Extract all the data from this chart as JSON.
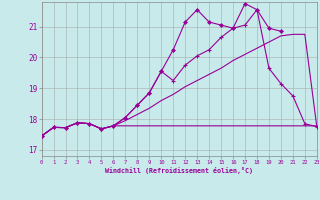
{
  "bg_color": "#c8eaea",
  "grid_color": "#aaaaaa",
  "line_color": "#990099",
  "xlabel": "Windchill (Refroidissement éolien,°C)",
  "x_ticks": [
    0,
    1,
    2,
    3,
    4,
    5,
    6,
    7,
    8,
    9,
    10,
    11,
    12,
    13,
    14,
    15,
    16,
    17,
    18,
    19,
    20,
    21,
    22,
    23
  ],
  "y_ticks": [
    17,
    18,
    19,
    20,
    21
  ],
  "xlim": [
    0,
    23
  ],
  "ylim": [
    16.8,
    21.8
  ],
  "line_flat_x": [
    0,
    1,
    2,
    3,
    4,
    5,
    6,
    7,
    8,
    9,
    10,
    11,
    12,
    13,
    14,
    15,
    16,
    17,
    18,
    19,
    20,
    21,
    22,
    23
  ],
  "line_flat_y": [
    17.45,
    17.73,
    17.72,
    17.88,
    17.85,
    17.68,
    17.78,
    17.78,
    17.78,
    17.78,
    17.78,
    17.78,
    17.78,
    17.78,
    17.78,
    17.78,
    17.78,
    17.78,
    17.78,
    17.78,
    17.78,
    17.78,
    17.78,
    17.78
  ],
  "line_diag_x": [
    0,
    1,
    2,
    3,
    4,
    5,
    6,
    7,
    8,
    9,
    10,
    11,
    12,
    13,
    14,
    15,
    16,
    17,
    18,
    19,
    20,
    21,
    22,
    23
  ],
  "line_diag_y": [
    17.45,
    17.73,
    17.72,
    17.88,
    17.85,
    17.68,
    17.78,
    17.95,
    18.15,
    18.35,
    18.6,
    18.8,
    19.05,
    19.25,
    19.45,
    19.65,
    19.9,
    20.1,
    20.3,
    20.5,
    20.7,
    20.75,
    20.75,
    17.75
  ],
  "line_mid_x": [
    0,
    1,
    2,
    3,
    4,
    5,
    6,
    7,
    8,
    9,
    10,
    11,
    12,
    13,
    14,
    15,
    16,
    17,
    18,
    19,
    20,
    21,
    22,
    23
  ],
  "line_mid_y": [
    17.45,
    17.73,
    17.72,
    17.88,
    17.85,
    17.68,
    17.78,
    18.05,
    18.45,
    18.85,
    19.55,
    19.25,
    19.75,
    20.05,
    20.25,
    20.65,
    20.95,
    21.05,
    21.55,
    19.65,
    19.15,
    18.75,
    17.85,
    17.75
  ],
  "line_top_x": [
    0,
    1,
    2,
    3,
    4,
    5,
    6,
    7,
    8,
    9,
    10,
    11,
    12,
    13,
    14,
    15,
    16,
    17,
    18,
    19,
    20
  ],
  "line_top_y": [
    17.45,
    17.73,
    17.72,
    17.88,
    17.85,
    17.68,
    17.78,
    18.05,
    18.45,
    18.85,
    19.55,
    20.25,
    21.15,
    21.55,
    21.15,
    21.05,
    20.95,
    21.75,
    21.55,
    20.95,
    20.85
  ]
}
